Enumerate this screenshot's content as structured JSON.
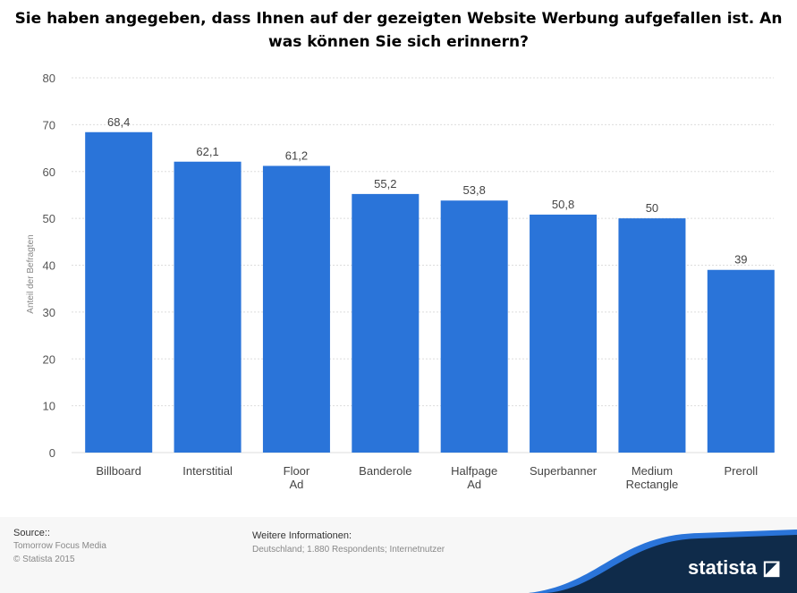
{
  "chart_data": {
    "type": "bar",
    "title": "Sie haben angegeben, dass Ihnen auf der gezeigten Website Werbung aufgefallen ist. An was können Sie sich erinnern?",
    "categories": [
      "Billboard",
      "Interstitial",
      "Floor Ad",
      "Banderole",
      "Halfpage Ad",
      "Superbanner",
      "Medium Rectangle",
      "Preroll"
    ],
    "values": [
      68.4,
      62.1,
      61.2,
      55.2,
      53.8,
      50.8,
      50,
      39
    ],
    "data_labels": [
      "68,4",
      "62,1",
      "61,2",
      "55,2",
      "53,8",
      "50,8",
      "50",
      "39"
    ],
    "xlabel": "",
    "ylabel": "Anteil der Befragten",
    "ylim": [
      0,
      80
    ],
    "yticks": [
      0,
      10,
      20,
      30,
      40,
      50,
      60,
      70,
      80
    ],
    "grid": true,
    "bar_color": "#2a74d9"
  },
  "footer": {
    "source_label": "Source::",
    "source": "Tomorrow Focus Media",
    "copyright": "© Statista 2015",
    "info_label": "Weitere Informationen:",
    "info": "Deutschland; 1.880 Respondents; Internetnutzer",
    "logo": "statista"
  }
}
